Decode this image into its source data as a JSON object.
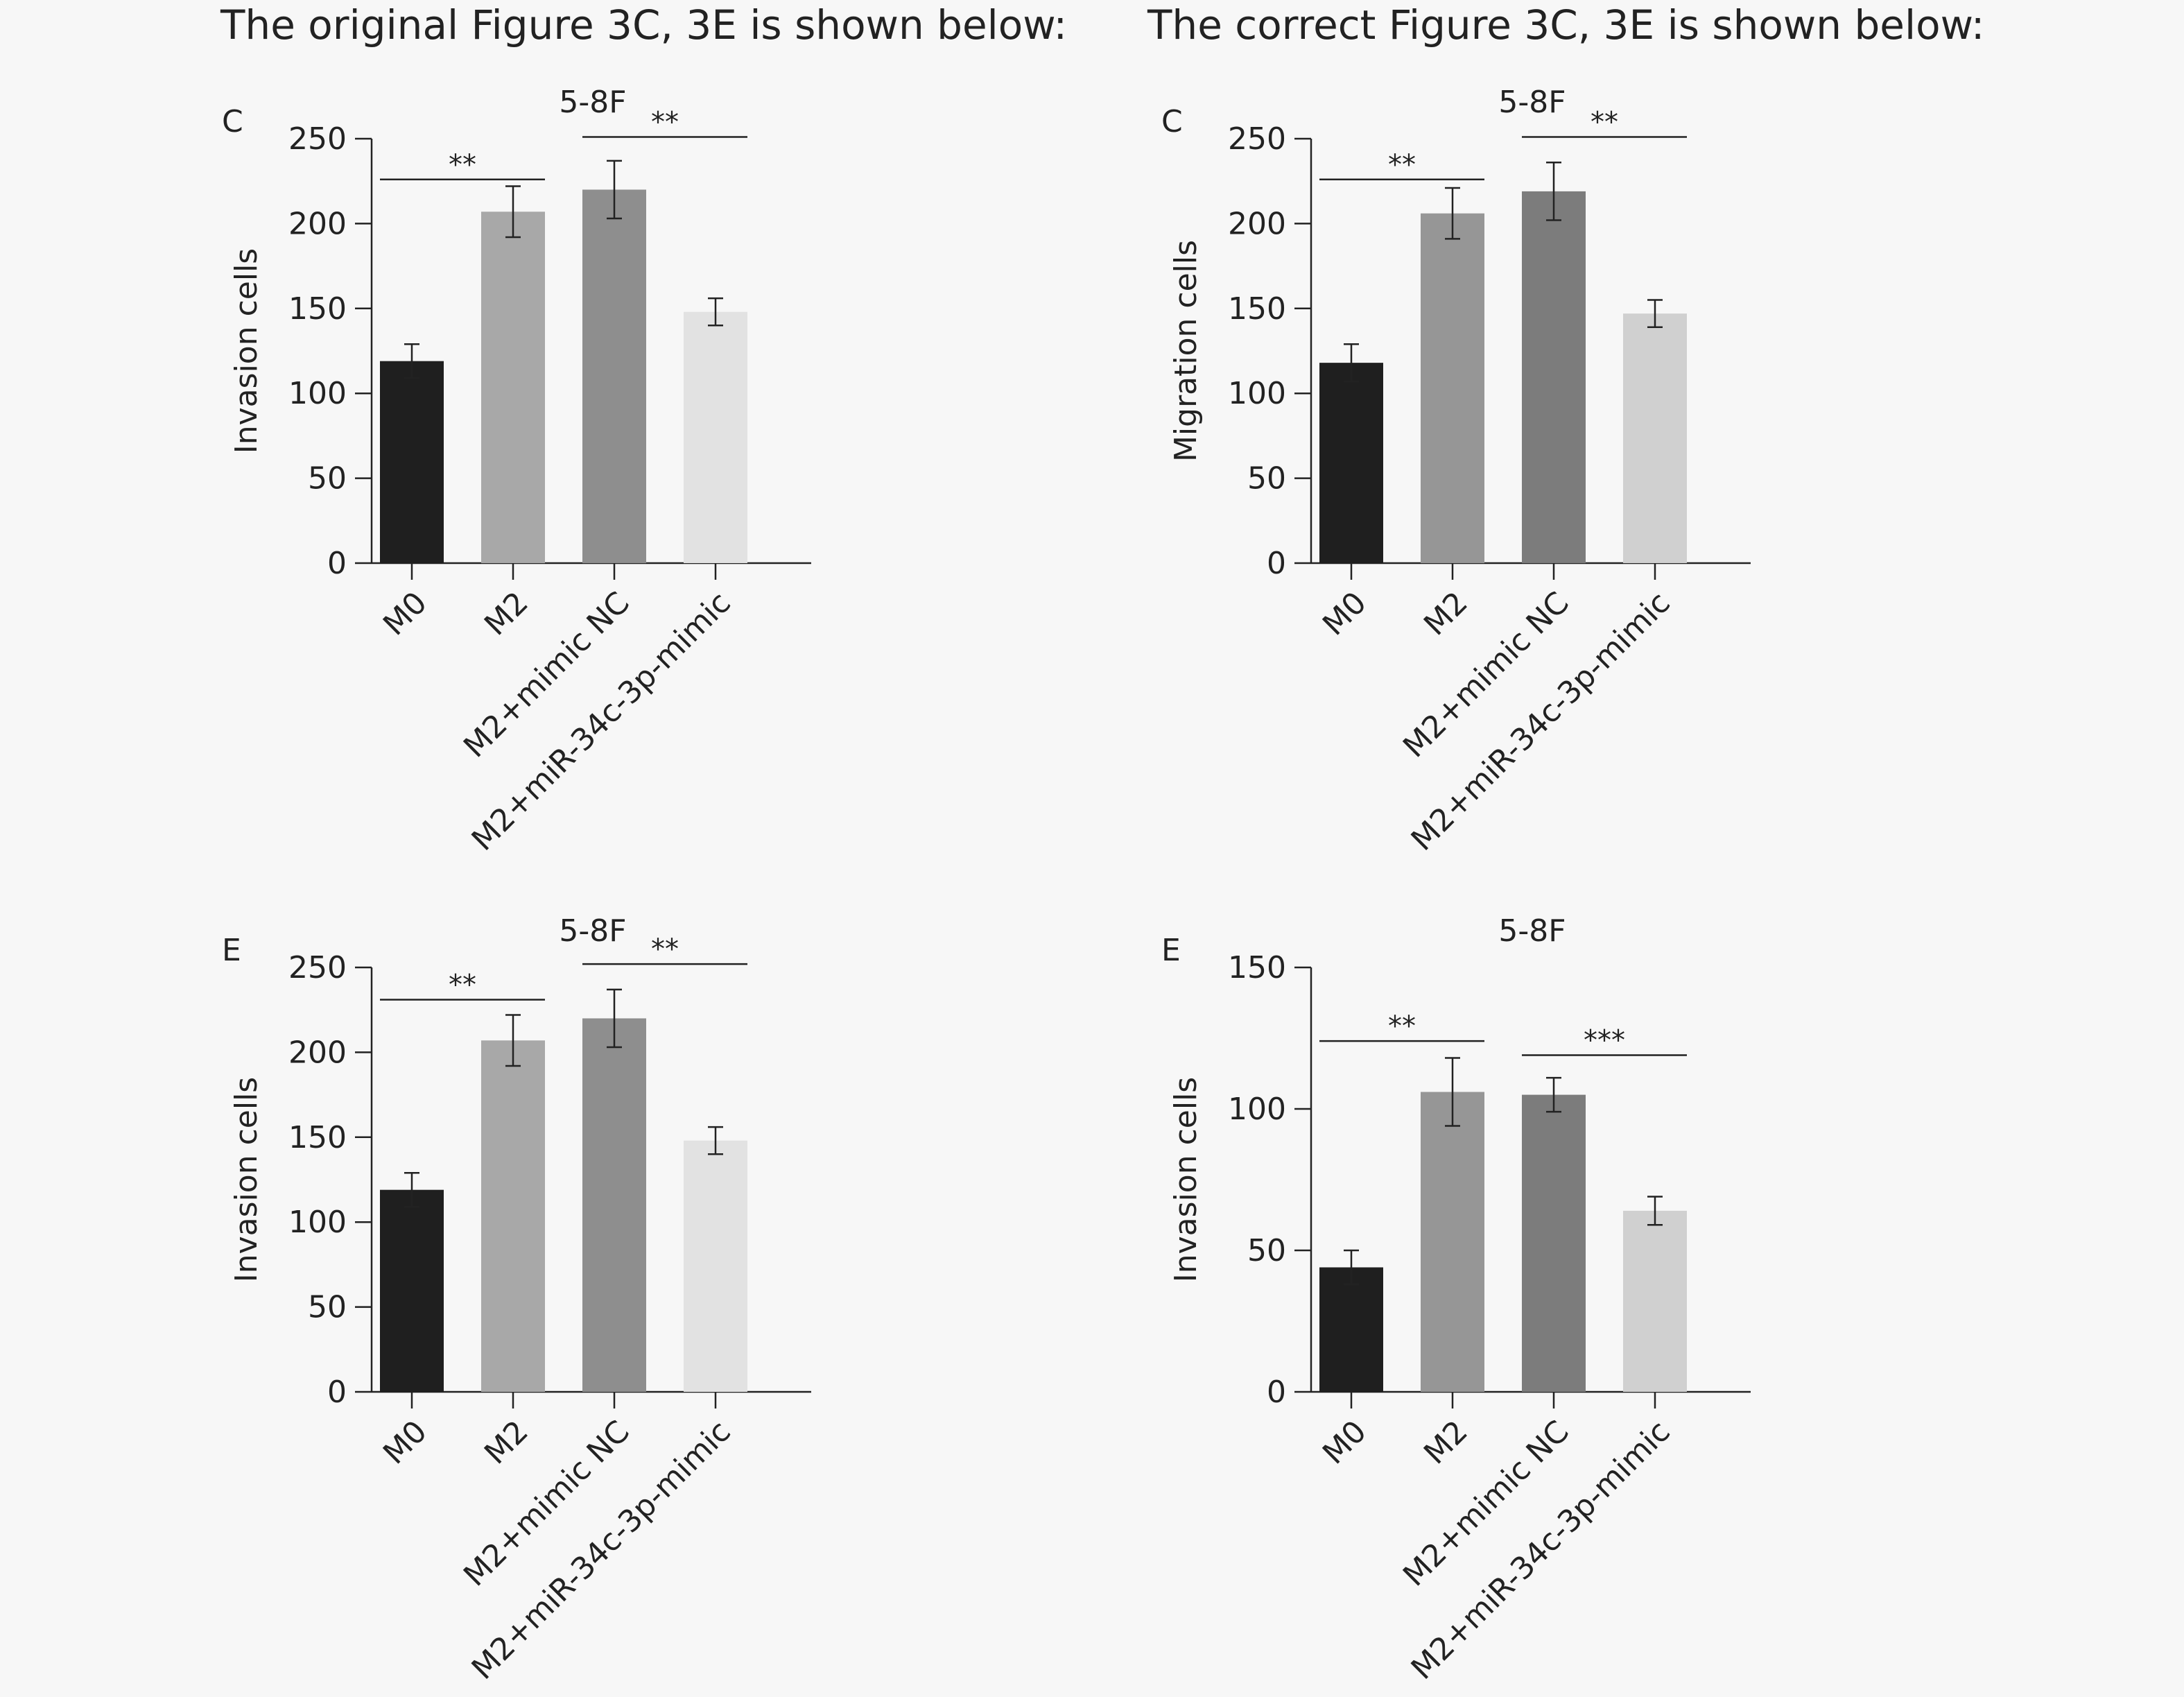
{
  "headings": {
    "left": "The original Figure 3C, 3E is shown below:",
    "right": "The correct Figure 3C, 3E is shown below:"
  },
  "colors": {
    "m0": "#1f1f1f",
    "axis": "#222222"
  },
  "chart_data": [
    {
      "type": "bar",
      "panel_label": "C",
      "title": "5-8F",
      "ylabel": "Invasion cells",
      "categories": [
        "M0",
        "M2",
        "M2+mimic NC",
        "M2+miR-34c-3p-mimic"
      ],
      "values": [
        119,
        207,
        220,
        148
      ],
      "errors": [
        10,
        15,
        17,
        8
      ],
      "bar_colors": [
        "#1f1f1f",
        "#a8a8a8",
        "#8e8e8e",
        "#e2e2e2"
      ],
      "ylim": [
        0,
        250
      ],
      "yticks": [
        0,
        50,
        100,
        150,
        200,
        250
      ],
      "significance": [
        {
          "from": 0,
          "to": 1,
          "label": "**",
          "y": 226
        },
        {
          "from": 2,
          "to": 3,
          "label": "**",
          "y": 251
        }
      ]
    },
    {
      "type": "bar",
      "panel_label": "C",
      "title": "5-8F",
      "ylabel": "Migration cells",
      "categories": [
        "M0",
        "M2",
        "M2+mimic NC",
        "M2+miR-34c-3p-mimic"
      ],
      "values": [
        118,
        206,
        219,
        147
      ],
      "errors": [
        11,
        15,
        17,
        8
      ],
      "bar_colors": [
        "#1f1f1f",
        "#969696",
        "#7c7c7c",
        "#d0d0d0"
      ],
      "ylim": [
        0,
        250
      ],
      "yticks": [
        0,
        50,
        100,
        150,
        200,
        250
      ],
      "significance": [
        {
          "from": 0,
          "to": 1,
          "label": "**",
          "y": 226
        },
        {
          "from": 2,
          "to": 3,
          "label": "**",
          "y": 251
        }
      ]
    },
    {
      "type": "bar",
      "panel_label": "E",
      "title": "5-8F",
      "ylabel": "Invasion cells",
      "categories": [
        "M0",
        "M2",
        "M2+mimic NC",
        "M2+miR-34c-3p-mimic"
      ],
      "values": [
        119,
        207,
        220,
        148
      ],
      "errors": [
        10,
        15,
        17,
        8
      ],
      "bar_colors": [
        "#1f1f1f",
        "#a8a8a8",
        "#8e8e8e",
        "#e2e2e2"
      ],
      "ylim": [
        0,
        250
      ],
      "yticks": [
        0,
        50,
        100,
        150,
        200,
        250
      ],
      "significance": [
        {
          "from": 0,
          "to": 1,
          "label": "**",
          "y": 231
        },
        {
          "from": 2,
          "to": 3,
          "label": "**",
          "y": 252
        }
      ]
    },
    {
      "type": "bar",
      "panel_label": "E",
      "title": "5-8F",
      "ylabel": "Invasion cells",
      "categories": [
        "M0",
        "M2",
        "M2+mimic NC",
        "M2+miR-34c-3p-mimic"
      ],
      "values": [
        44,
        106,
        105,
        64
      ],
      "errors": [
        6,
        12,
        6,
        5
      ],
      "bar_colors": [
        "#1f1f1f",
        "#969696",
        "#7c7c7c",
        "#d0d0d0"
      ],
      "ylim": [
        0,
        150
      ],
      "yticks": [
        0,
        50,
        100,
        150
      ],
      "significance": [
        {
          "from": 0,
          "to": 1,
          "label": "**",
          "y": 124
        },
        {
          "from": 2,
          "to": 3,
          "label": "***",
          "y": 119
        }
      ]
    }
  ]
}
